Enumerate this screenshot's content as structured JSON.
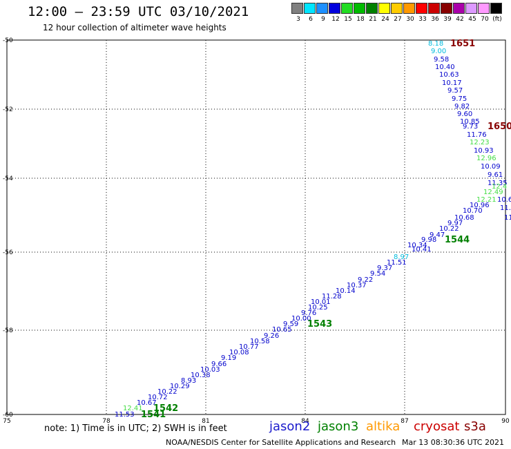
{
  "title": "12:00 – 23:59 UTC 03/10/2021",
  "subtitle": "12 hour collection of altimeter wave heights",
  "color_scale": {
    "labels": [
      "3",
      "6",
      "9",
      "12",
      "15",
      "18",
      "21",
      "24",
      "27",
      "30",
      "33",
      "36",
      "39",
      "42",
      "45",
      "70",
      "(ft)"
    ],
    "colors": [
      "#808080",
      "#00e5ff",
      "#1e90ff",
      "#0000dd",
      "#22dd22",
      "#00bb00",
      "#008000",
      "#ffff00",
      "#ffcc00",
      "#ff9900",
      "#ff0000",
      "#cc0000",
      "#880000",
      "#aa00aa",
      "#dd99ff",
      "#ff99ff",
      "#000000"
    ]
  },
  "note": "note: 1) Time is in UTC; 2) SWH is in feet",
  "legend": [
    {
      "label": "jason2",
      "color": "#1a1acc"
    },
    {
      "label": "jason3",
      "color": "#008000"
    },
    {
      "label": "altika",
      "color": "#ff9900"
    },
    {
      "label": "cryosat",
      "color": "#cc0000"
    },
    {
      "label": "s3a",
      "color": "#880000"
    }
  ],
  "credit": "NOAA/NESDIS Center for Satellite Applications and Research",
  "timestamp": "Mar 13 08:30:36 UTC 2021",
  "map": {
    "lon_ticks": [
      "75",
      "78",
      "81",
      "84",
      "87",
      "90"
    ],
    "lat_ticks": [
      "-50",
      "-52",
      "-54",
      "-56",
      "-58",
      "-60"
    ]
  },
  "track_labels": [
    {
      "text": "1651",
      "color": "#880000"
    },
    {
      "text": "1650",
      "color": "#880000"
    },
    {
      "text": "1544",
      "color": "#008000"
    },
    {
      "text": "1543",
      "color": "#008000"
    },
    {
      "text": "1542",
      "color": "#008000"
    },
    {
      "text": "1541",
      "color": "#008000"
    }
  ],
  "observations": [
    {
      "text": "8.18",
      "color": "#00bbdd"
    },
    {
      "text": "9.00",
      "color": "#00bbdd"
    },
    {
      "text": "9.58",
      "color": "#0000cc"
    },
    {
      "text": "10.40",
      "color": "#0000cc"
    },
    {
      "text": "10.63",
      "color": "#0000cc"
    },
    {
      "text": "10.17",
      "color": "#0000cc"
    },
    {
      "text": "9.57",
      "color": "#0000cc"
    },
    {
      "text": "9.75",
      "color": "#0000cc"
    },
    {
      "text": "9.82",
      "color": "#0000cc"
    },
    {
      "text": "9.60",
      "color": "#0000cc"
    },
    {
      "text": "10.85",
      "color": "#0000cc"
    },
    {
      "text": "9.73",
      "color": "#0000cc"
    },
    {
      "text": "11.76",
      "color": "#0000cc"
    },
    {
      "text": "12.23",
      "color": "#44dd44"
    },
    {
      "text": "10.93",
      "color": "#0000cc"
    },
    {
      "text": "12.96",
      "color": "#44dd44"
    },
    {
      "text": "10.09",
      "color": "#0000cc"
    },
    {
      "text": "9.61",
      "color": "#0000cc"
    },
    {
      "text": "11.35",
      "color": "#0000cc"
    },
    {
      "text": "12.4",
      "color": "#44dd44"
    },
    {
      "text": "12.49",
      "color": "#44dd44"
    },
    {
      "text": "12.21",
      "color": "#44dd44"
    },
    {
      "text": "10.6",
      "color": "#0000cc"
    },
    {
      "text": "10.96",
      "color": "#0000cc"
    },
    {
      "text": "11.",
      "color": "#0000cc"
    },
    {
      "text": "10.70",
      "color": "#0000cc"
    },
    {
      "text": "10.68",
      "color": "#0000cc"
    },
    {
      "text": "11",
      "color": "#0000cc"
    },
    {
      "text": "9.97",
      "color": "#0000cc"
    },
    {
      "text": "10.22",
      "color": "#0000cc"
    },
    {
      "text": "9.47",
      "color": "#0000cc"
    },
    {
      "text": "9.98",
      "color": "#0000cc"
    },
    {
      "text": "10.41",
      "color": "#0000cc"
    },
    {
      "text": "10.34",
      "color": "#0000cc"
    },
    {
      "text": "8.97",
      "color": "#00bbdd"
    },
    {
      "text": "11.51",
      "color": "#0000cc"
    },
    {
      "text": "9.37",
      "color": "#0000cc"
    },
    {
      "text": "9.54",
      "color": "#0000cc"
    },
    {
      "text": "9.22",
      "color": "#0000cc"
    },
    {
      "text": "10.37",
      "color": "#0000cc"
    },
    {
      "text": "10.14",
      "color": "#0000cc"
    },
    {
      "text": "11.28",
      "color": "#0000cc"
    },
    {
      "text": "10.01",
      "color": "#0000cc"
    },
    {
      "text": "10.25",
      "color": "#0000cc"
    },
    {
      "text": "9.76",
      "color": "#0000cc"
    },
    {
      "text": "10.00",
      "color": "#0000cc"
    },
    {
      "text": "9.59",
      "color": "#0000cc"
    },
    {
      "text": "10.65",
      "color": "#0000cc"
    },
    {
      "text": "9.26",
      "color": "#0000cc"
    },
    {
      "text": "10.58",
      "color": "#0000cc"
    },
    {
      "text": "10.77",
      "color": "#0000cc"
    },
    {
      "text": "10.08",
      "color": "#0000cc"
    },
    {
      "text": "9.19",
      "color": "#0000cc"
    },
    {
      "text": "9.66",
      "color": "#0000cc"
    },
    {
      "text": "10.03",
      "color": "#0000cc"
    },
    {
      "text": "10.38",
      "color": "#0000cc"
    },
    {
      "text": "8.93",
      "color": "#0000cc"
    },
    {
      "text": "10.29",
      "color": "#0000cc"
    },
    {
      "text": "10.22",
      "color": "#0000cc"
    },
    {
      "text": "10.72",
      "color": "#0000cc"
    },
    {
      "text": "10.67",
      "color": "#0000cc"
    },
    {
      "text": "12.41",
      "color": "#44dd44"
    },
    {
      "text": "11.53",
      "color": "#0000cc"
    }
  ]
}
